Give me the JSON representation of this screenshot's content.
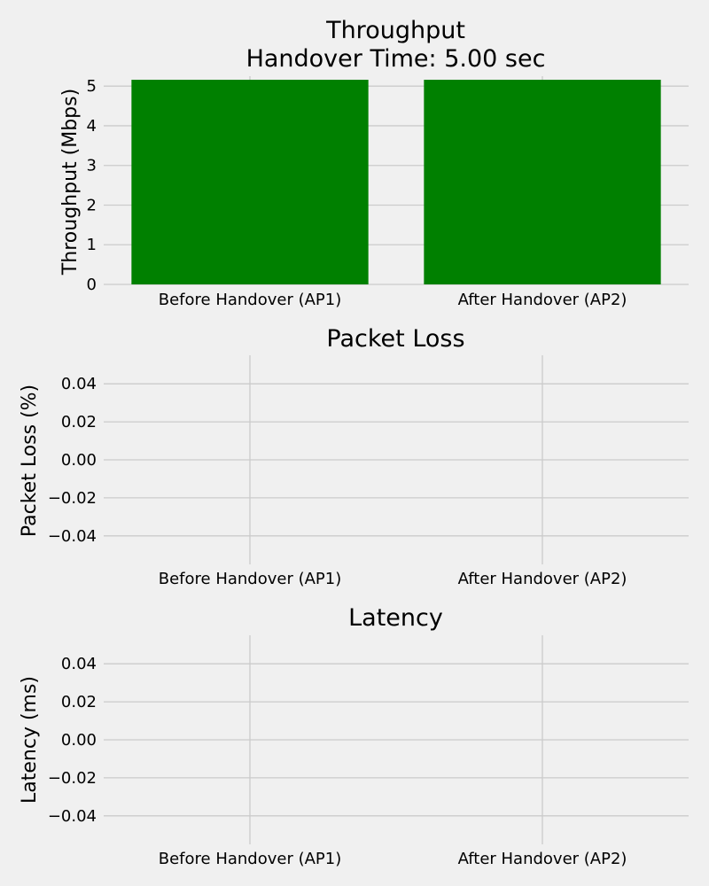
{
  "chart_data": [
    {
      "type": "bar",
      "title": "Throughput\nHandover Time: 5.00 sec",
      "xlabel": "",
      "ylabel": "Throughput (Mbps)",
      "categories": [
        "Before Handover (AP1)",
        "After Handover (AP2)"
      ],
      "values": [
        5.16,
        5.16
      ],
      "ylim": [
        0,
        5.25
      ],
      "yticks": [
        "0",
        "1",
        "2",
        "3",
        "4",
        "5"
      ],
      "grid": true,
      "bar_color": "#008000"
    },
    {
      "type": "bar",
      "title": "Packet Loss",
      "xlabel": "",
      "ylabel": "Packet Loss (%)",
      "categories": [
        "Before Handover (AP1)",
        "After Handover (AP2)"
      ],
      "values": [
        0,
        0
      ],
      "ylim": [
        -0.055,
        0.055
      ],
      "yticks": [
        "−0.04",
        "−0.02",
        "0.00",
        "0.02",
        "0.04"
      ],
      "grid": true,
      "bar_color": "#ff0000"
    },
    {
      "type": "bar",
      "title": "Latency",
      "xlabel": "",
      "ylabel": "Latency (ms)",
      "categories": [
        "Before Handover (AP1)",
        "After Handover (AP2)"
      ],
      "values": [
        0,
        0
      ],
      "ylim": [
        -0.055,
        0.055
      ],
      "yticks": [
        "−0.04",
        "−0.02",
        "0.00",
        "0.02",
        "0.04"
      ],
      "grid": true,
      "bar_color": "#0000ff"
    }
  ],
  "colors": {
    "background": "#f0f0f0",
    "grid": "#cbcbcb",
    "text": "#000000"
  }
}
